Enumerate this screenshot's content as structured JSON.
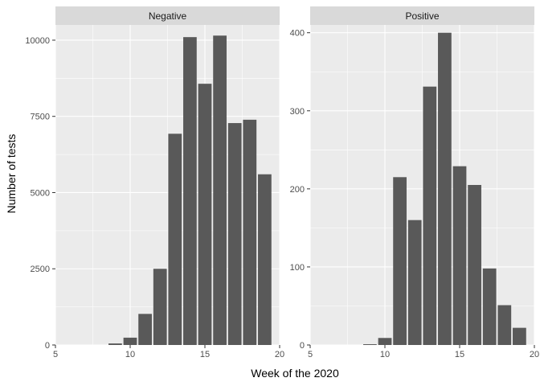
{
  "chart_data": {
    "type": "bar",
    "xlabel": "Week of the 2020",
    "ylabel": "Number of tests",
    "panels": [
      {
        "name": "Negative",
        "xlim": [
          5,
          20
        ],
        "ylim": [
          0,
          10500
        ],
        "x_ticks": [
          5,
          10,
          15,
          20
        ],
        "y_ticks": [
          0,
          2500,
          5000,
          7500,
          10000
        ],
        "x": [
          9,
          10,
          11,
          12,
          13,
          14,
          15,
          16,
          17,
          18,
          19
        ],
        "values": [
          50,
          240,
          1020,
          2500,
          6930,
          10100,
          8570,
          10150,
          7280,
          7390,
          5600
        ]
      },
      {
        "name": "Positive",
        "xlim": [
          5,
          20
        ],
        "ylim": [
          0,
          410
        ],
        "x_ticks": [
          5,
          10,
          15,
          20
        ],
        "y_ticks": [
          0,
          100,
          200,
          300,
          400
        ],
        "x": [
          9,
          10,
          11,
          12,
          13,
          14,
          15,
          16,
          17,
          18,
          19
        ],
        "values": [
          1,
          9,
          215,
          160,
          331,
          400,
          229,
          205,
          98,
          51,
          22
        ]
      }
    ],
    "grid": true,
    "bar_color": "#595959",
    "panel_background": "#ebebeb",
    "strip_background": "#d9d9d9",
    "grid_color": "#ffffff"
  }
}
